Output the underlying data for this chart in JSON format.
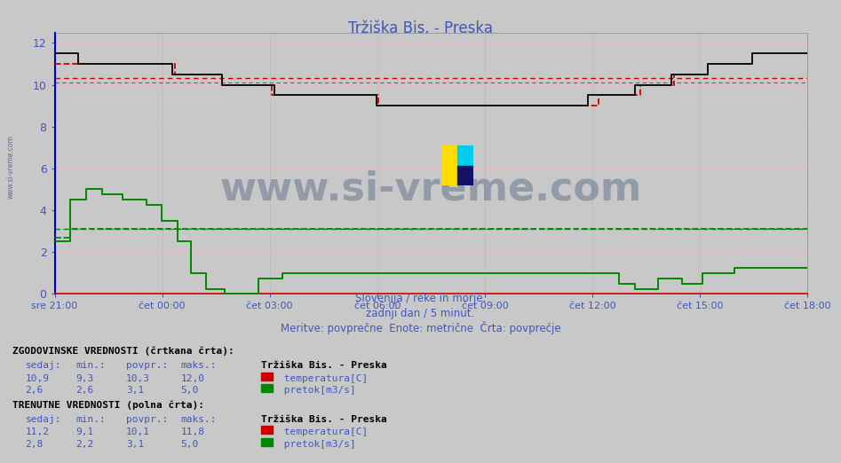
{
  "title": "Tržiška Bis. - Preska",
  "title_color": "#4455bb",
  "bg_color": "#c8c8c8",
  "plot_bg_color": "#c8c8c8",
  "grid_color_v": "#bbaaaa",
  "grid_color_h": "#ffaaaa",
  "tick_color": "#4455bb",
  "ymin": 0,
  "ymax": 12.5,
  "yticks": [
    0,
    2,
    4,
    6,
    8,
    10,
    12
  ],
  "x_labels": [
    "sre 21:00",
    "čet 00:00",
    "čet 03:00",
    "čet 06:00",
    "čet 09:00",
    "čet 12:00",
    "čet 15:00",
    "čet 18:00"
  ],
  "n_points": 289,
  "temp_hist_avg": 10.3,
  "temp_curr_avg": 10.1,
  "pretok_hist_avg": 3.1,
  "pretok_curr_avg": 3.1,
  "subtitle1": "Slovenija / reke in morje.",
  "subtitle2": "zadnji dan / 5 minut.",
  "subtitle3": "Meritve: povprečne  Enote: metrične  Črta: povprečje",
  "label_hist": "ZGODOVINSKE VREDNOSTI (črtkana črta):",
  "label_curr": "TRENUTNE VREDNOSTI (polna črta):",
  "station_name": "Tržiška Bis. - Preska",
  "hist_sedaj_temp": "10,9",
  "hist_min_temp": "9,3",
  "hist_avg_temp": "10,3",
  "hist_max_temp": "12,0",
  "hist_sedaj_pretok": "2,6",
  "hist_min_pretok": "2,6",
  "hist_avg_pretok": "3,1",
  "hist_max_pretok": "5,0",
  "curr_sedaj_temp": "11,2",
  "curr_min_temp": "9,1",
  "curr_avg_temp": "10,1",
  "curr_max_temp": "11,8",
  "curr_sedaj_pretok": "2,8",
  "curr_min_pretok": "2,2",
  "curr_avg_pretok": "3,1",
  "curr_max_pretok": "5,0",
  "temp_color": "#cc0000",
  "pretok_color": "#008800",
  "watermark_text": "www.si-vreme.com",
  "watermark_color": "#1a3060",
  "watermark_alpha": 0.3,
  "left_margin_text": "www.si-vreme.com"
}
